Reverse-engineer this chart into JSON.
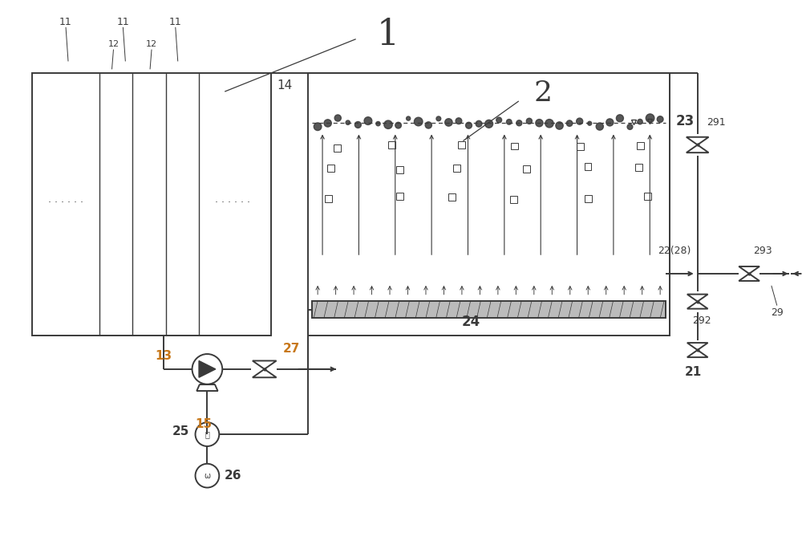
{
  "bg_color": "#ffffff",
  "line_color": "#3a3a3a",
  "orange_color": "#c8781a",
  "label1": "1",
  "label2": "2",
  "label11a": "11",
  "label11b": "11",
  "label11c": "11",
  "label12a": "12",
  "label12b": "12",
  "label13": "13",
  "label14": "14",
  "label15": "15",
  "label21": "21",
  "label22": "22(28)",
  "label23": "23",
  "label24": "24",
  "label25": "25",
  "label26": "26",
  "label27": "27",
  "label29": "29",
  "label291": "291",
  "label292": "292",
  "label293": "293"
}
